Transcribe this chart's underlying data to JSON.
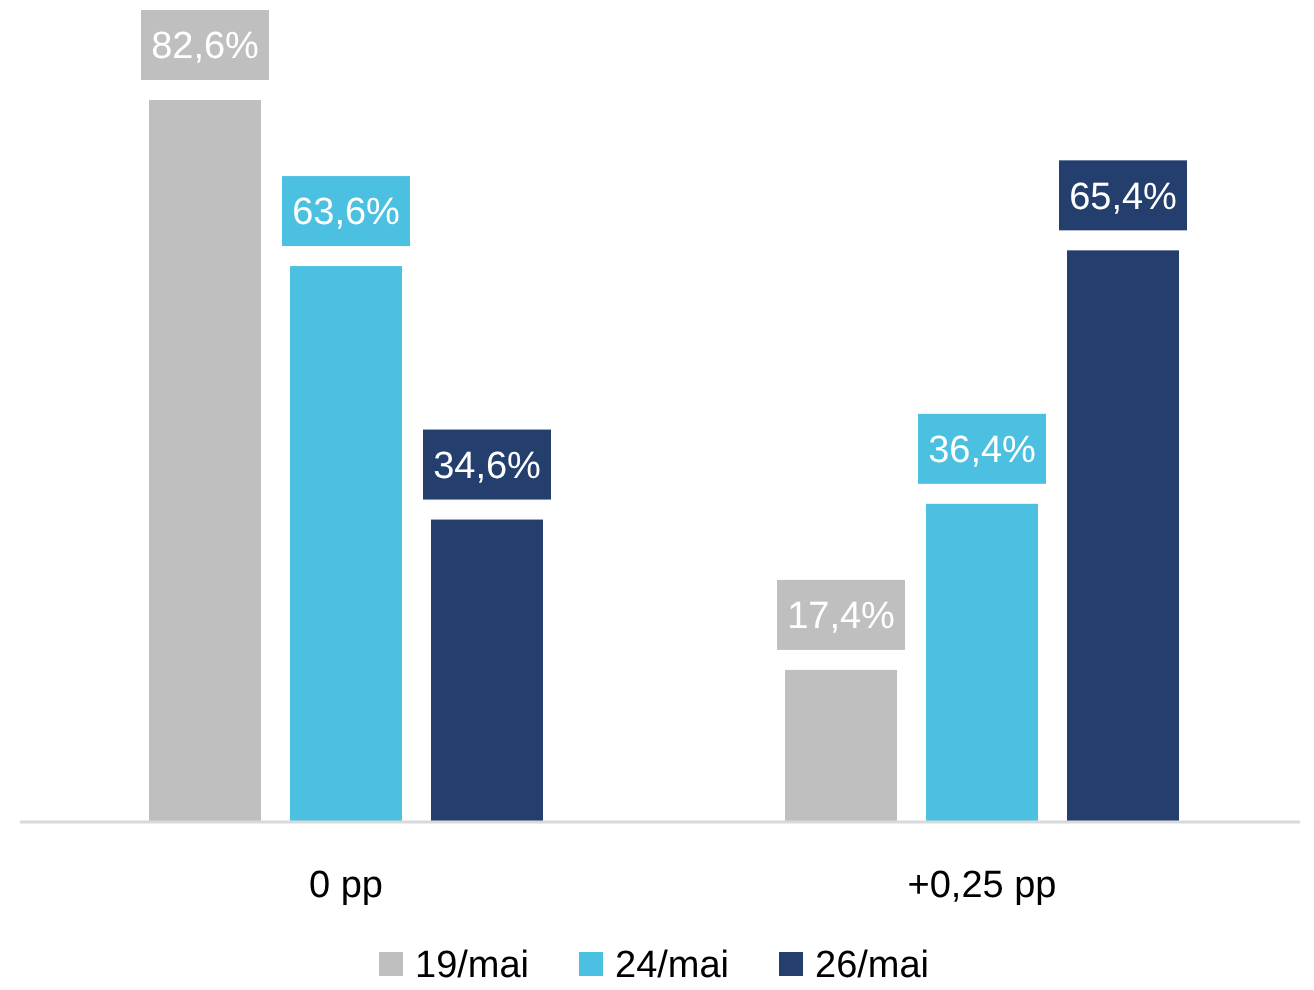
{
  "chart_data": {
    "type": "bar",
    "categories": [
      "0 pp",
      "+0,25 pp"
    ],
    "series": [
      {
        "name": "19/mai",
        "color": "#bfbfbf",
        "values": [
          82.6,
          17.4
        ],
        "value_labels": [
          "82,6%",
          "17,4%"
        ]
      },
      {
        "name": "24/mai",
        "color": "#4bc0e0",
        "values": [
          63.6,
          36.4
        ],
        "value_labels": [
          "63,6%",
          "36,4%"
        ]
      },
      {
        "name": "26/mai",
        "color": "#243f6e",
        "values": [
          34.6,
          65.4
        ],
        "value_labels": [
          "34,6%",
          "65,4%"
        ]
      }
    ],
    "legend": "bottom"
  }
}
